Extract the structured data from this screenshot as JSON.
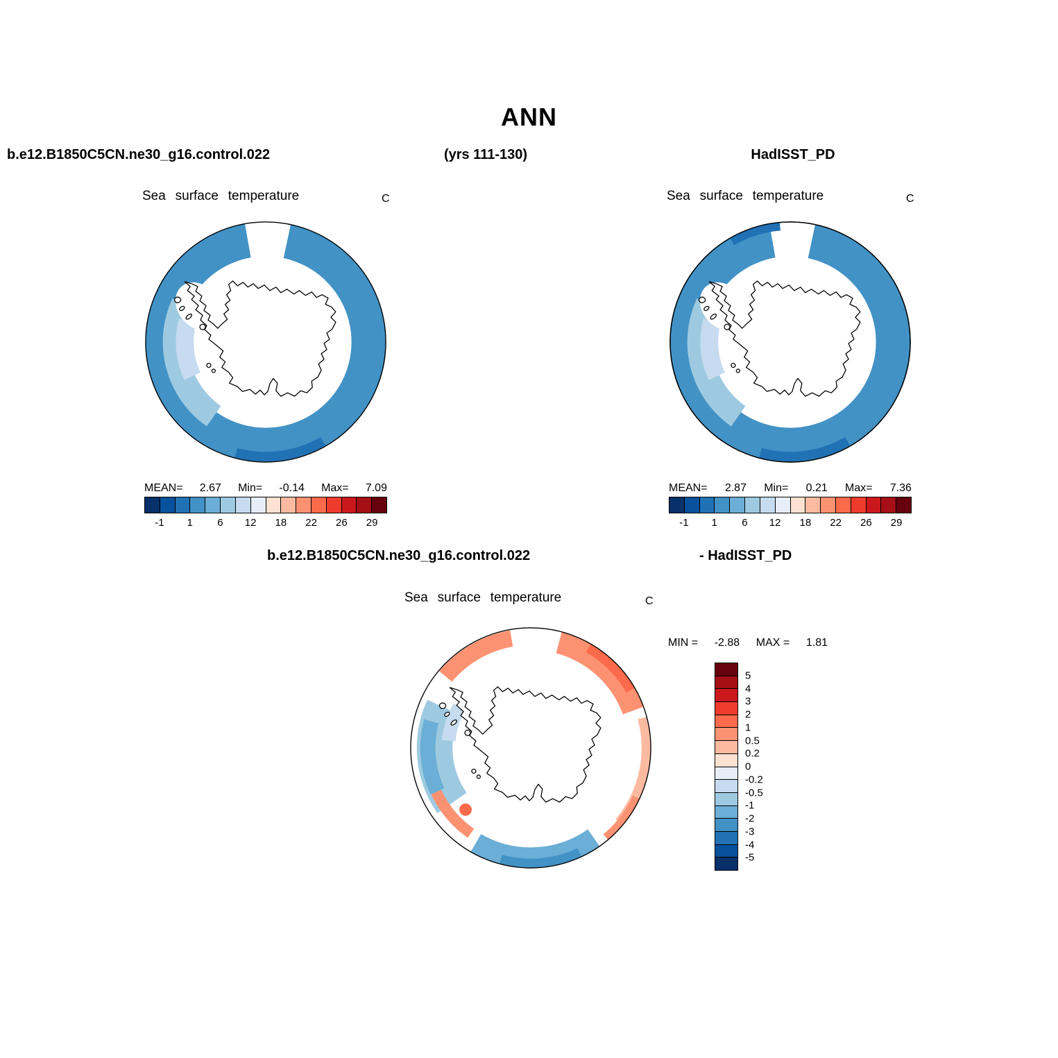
{
  "page_title": "ANN",
  "header": {
    "left_model": "b.e12.B1850C5CN.ne30_g16.control.022",
    "years": "(yrs 111-130)",
    "right_model": "HadISST_PD"
  },
  "diff_header": {
    "left": "b.e12.B1850C5CN.ne30_g16.control.022",
    "right": "- HadISST_PD"
  },
  "chart_data": [
    {
      "type": "heatmap",
      "subtype": "south-polar-stereographic-map",
      "dataset": "b.e12.B1850C5CN.ne30_g16.control.022",
      "title": "Sea surface temperature",
      "units": "C",
      "stats": {
        "mean_label": "MEAN=",
        "mean": 2.67,
        "min_label": "Min=",
        "min": -0.14,
        "max_label": "Max=",
        "max": 7.09
      },
      "colorbar": {
        "orientation": "horizontal",
        "ticks": [
          -1,
          1,
          6,
          12,
          18,
          22,
          26,
          29
        ],
        "colors": [
          "#08306b",
          "#08519c",
          "#2171b5",
          "#4292c6",
          "#6baed6",
          "#9ecae1",
          "#c6dbef",
          "#e7eef8",
          "#fde2d2",
          "#fcbba1",
          "#fc9272",
          "#fb6a4a",
          "#ef3b2c",
          "#cb181d",
          "#a50f15",
          "#67000d"
        ]
      }
    },
    {
      "type": "heatmap",
      "subtype": "south-polar-stereographic-map",
      "dataset": "HadISST_PD",
      "title": "Sea surface temperature",
      "units": "C",
      "stats": {
        "mean_label": "MEAN=",
        "mean": 2.87,
        "min_label": "Min=",
        "min": 0.21,
        "max_label": "Max=",
        "max": 7.36
      },
      "colorbar": {
        "orientation": "horizontal",
        "ticks": [
          -1,
          1,
          6,
          12,
          18,
          22,
          26,
          29
        ],
        "colors": [
          "#08306b",
          "#08519c",
          "#2171b5",
          "#4292c6",
          "#6baed6",
          "#9ecae1",
          "#c6dbef",
          "#e7eef8",
          "#fde2d2",
          "#fcbba1",
          "#fc9272",
          "#fb6a4a",
          "#ef3b2c",
          "#cb181d",
          "#a50f15",
          "#67000d"
        ]
      }
    },
    {
      "type": "heatmap",
      "subtype": "south-polar-stereographic-map-difference",
      "dataset": "b.e12.B1850C5CN.ne30_g16.control.022 - HadISST_PD",
      "title": "Sea surface temperature",
      "units": "C",
      "stats": {
        "min_label": "MIN =",
        "min": -2.88,
        "max_label": "MAX =",
        "max": 1.81
      },
      "colorbar": {
        "orientation": "vertical",
        "ticks": [
          5,
          4,
          3,
          2,
          1,
          0.5,
          0.2,
          0,
          -0.2,
          -0.5,
          -1,
          -2,
          -3,
          -4,
          -5
        ],
        "colors": [
          "#67000d",
          "#a50f15",
          "#cb181d",
          "#ef3b2c",
          "#fb6a4a",
          "#fc9272",
          "#fcbba1",
          "#fde2d2",
          "#e7eef8",
          "#c6dbef",
          "#9ecae1",
          "#6baed6",
          "#4292c6",
          "#2171b5",
          "#08519c",
          "#08306b"
        ]
      }
    }
  ]
}
